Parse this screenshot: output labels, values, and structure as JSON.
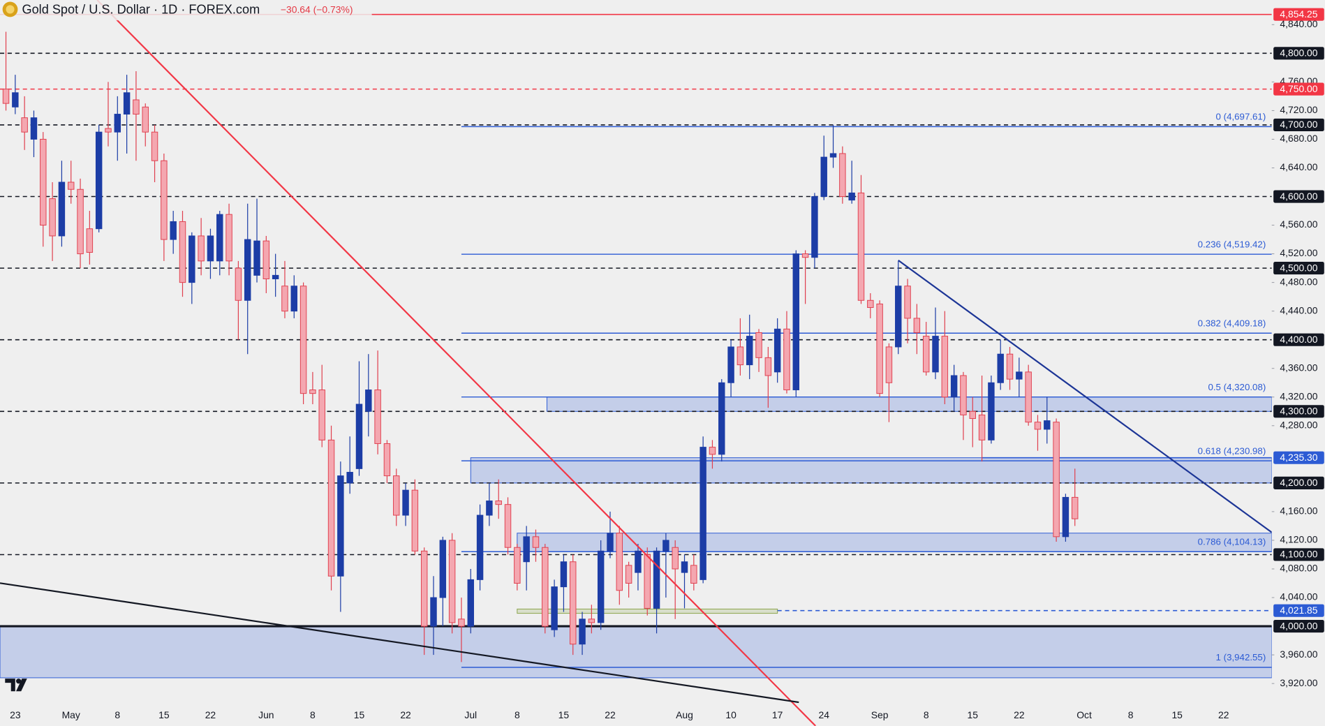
{
  "chart_data": {
    "type": "candlestick",
    "title": "Gold Spot / U.S. Dollar · 1D · FOREX.com",
    "subtitle": "−30.64 (−0.73%)",
    "up_color": "#1c3da6",
    "down_color": "#f4a7b0",
    "down_border": "#e0404f",
    "xlim": [
      -0.64,
      136.18
    ],
    "ylim": [
      3895,
      4874.3
    ],
    "categories": [
      null,
      "23",
      null,
      null,
      null,
      null,
      null,
      "May",
      null,
      null,
      null,
      null,
      "8",
      null,
      null,
      null,
      null,
      "15",
      null,
      null,
      null,
      null,
      "22",
      null,
      null,
      null,
      null,
      null,
      "Jun",
      null,
      null,
      null,
      null,
      "8",
      null,
      null,
      null,
      null,
      "15",
      null,
      null,
      null,
      null,
      "22",
      null,
      null,
      null,
      null,
      null,
      null,
      "Jul",
      null,
      null,
      null,
      null,
      "8",
      null,
      null,
      null,
      null,
      "15",
      null,
      null,
      null,
      null,
      "22",
      null,
      null,
      null,
      null,
      null,
      null,
      null,
      "Aug",
      null,
      null,
      null,
      null,
      "10",
      null,
      null,
      null,
      null,
      "17",
      null,
      null,
      null,
      null,
      "24",
      null,
      null,
      null,
      null,
      null,
      "Sep",
      null,
      null,
      null,
      null,
      "8",
      null,
      null,
      null,
      null,
      "15",
      null,
      null,
      null,
      null,
      "22",
      null,
      null,
      null,
      null,
      null,
      null,
      "Oct",
      null,
      null,
      null,
      null,
      "8",
      null,
      null,
      null,
      null,
      "15",
      null,
      null,
      null,
      null,
      "22"
    ],
    "open": [
      4750,
      4725,
      4710,
      4680,
      4680,
      4597,
      4545,
      4620,
      4610,
      4555,
      4555,
      4695,
      4690,
      4715,
      4735,
      4725,
      4690,
      4650,
      4540,
      4565,
      4480,
      4545,
      4510,
      4510,
      4575,
      4500,
      4455,
      4490,
      4538,
      4485,
      4475,
      4440,
      4475,
      4330,
      4330,
      4260,
      4070,
      4200,
      4220,
      4300,
      4330,
      4255,
      4210,
      4155,
      4190,
      4105,
      4000,
      4040,
      4120,
      4010,
      4000,
      4065,
      4155,
      4175,
      4170,
      4110,
      4090,
      4125,
      4110,
      3995,
      4055,
      4090,
      3975,
      4010,
      4005,
      4105,
      4130,
      4085,
      4075,
      4100,
      4025,
      4105,
      4110,
      4075,
      4085,
      4065,
      4250,
      4240,
      4340,
      4390,
      4365,
      4410,
      4375,
      4355,
      4415,
      4330,
      4520,
      4515,
      4600,
      4655,
      4660,
      4595,
      4605,
      4455,
      4450,
      4390,
      4390,
      4475,
      4430,
      4405,
      4355,
      4405,
      4320,
      4350,
      4300,
      4295,
      4260,
      4340,
      4380,
      4345,
      4355,
      4285,
      4275,
      4285,
      4125,
      4180,
      null,
      null,
      null,
      null,
      null,
      null,
      null,
      null,
      null,
      null,
      null,
      null,
      null,
      null,
      null,
      null
    ],
    "high": [
      4830,
      4770,
      4740,
      4720,
      4690,
      4620,
      4650,
      4650,
      4625,
      4580,
      4700,
      4760,
      4740,
      4770,
      4775,
      4730,
      4700,
      4660,
      4580,
      4580,
      4550,
      4570,
      4555,
      4580,
      4590,
      4510,
      4590,
      4597,
      4545,
      4520,
      4510,
      4490,
      4480,
      4355,
      4365,
      4280,
      4230,
      4265,
      4370,
      4380,
      4385,
      4260,
      4220,
      4200,
      4205,
      4110,
      4070,
      4125,
      4130,
      4040,
      4080,
      4170,
      4200,
      4205,
      4180,
      4115,
      4140,
      4135,
      4115,
      4065,
      4100,
      4100,
      4020,
      4030,
      4120,
      4160,
      4140,
      4090,
      4115,
      4110,
      4110,
      4130,
      4120,
      4100,
      4100,
      4265,
      4260,
      4345,
      4400,
      4430,
      4435,
      4415,
      4390,
      4430,
      4440,
      4525,
      4525,
      4605,
      4685,
      4700,
      4670,
      4650,
      4630,
      4465,
      4455,
      4395,
      4510,
      4485,
      4450,
      4425,
      4445,
      4440,
      4365,
      4355,
      4320,
      4350,
      4350,
      4400,
      4390,
      4375,
      4365,
      4295,
      4320,
      4290,
      4185,
      4220,
      null,
      null,
      null,
      null,
      null,
      null,
      null,
      null,
      null,
      null,
      null,
      null,
      null,
      null,
      null,
      null
    ],
    "low": [
      4720,
      4715,
      4665,
      4655,
      4530,
      4510,
      4530,
      4590,
      4500,
      4505,
      4550,
      4670,
      4650,
      4660,
      4650,
      4670,
      4620,
      4510,
      4520,
      4460,
      4450,
      4490,
      4485,
      4490,
      4490,
      4400,
      4380,
      4480,
      4465,
      4460,
      4430,
      4430,
      4310,
      4310,
      4250,
      4050,
      4020,
      4185,
      4210,
      4265,
      4240,
      4200,
      4140,
      4140,
      4100,
      3960,
      3960,
      4000,
      3990,
      3950,
      3990,
      4050,
      4140,
      4150,
      4100,
      4050,
      4050,
      4090,
      3990,
      3985,
      4020,
      3960,
      3960,
      3990,
      3995,
      4095,
      4030,
      4040,
      4050,
      4015,
      3990,
      4040,
      4010,
      4025,
      4050,
      4060,
      4220,
      4230,
      4320,
      4350,
      4345,
      4355,
      4305,
      4340,
      4325,
      4320,
      4450,
      4500,
      4595,
      4640,
      4590,
      4590,
      4450,
      4430,
      4320,
      4285,
      4380,
      4395,
      4380,
      4350,
      4345,
      4310,
      4300,
      4260,
      4250,
      4230,
      4255,
      4330,
      4330,
      4320,
      4280,
      4245,
      4255,
      4118,
      4118,
      4140,
      null,
      null,
      null,
      null,
      null,
      null,
      null,
      null,
      null,
      null,
      null,
      null,
      null,
      null,
      null,
      null
    ],
    "close": [
      4730,
      4745,
      4690,
      4710,
      4560,
      4545,
      4620,
      4610,
      4520,
      4522,
      4690,
      4690,
      4715,
      4745,
      4715,
      4690,
      4650,
      4540,
      4565,
      4480,
      4545,
      4510,
      4545,
      4575,
      4510,
      4455,
      4540,
      4538,
      4485,
      4490,
      4440,
      4475,
      4325,
      4325,
      4260,
      4070,
      4210,
      4215,
      4310,
      4330,
      4255,
      4210,
      4155,
      4190,
      4105,
      4000,
      4040,
      4120,
      4005,
      4000,
      4065,
      4155,
      4175,
      4170,
      4110,
      4060,
      4125,
      4110,
      4000,
      4055,
      4090,
      3975,
      4010,
      4005,
      4105,
      4130,
      4050,
      4060,
      4105,
      4025,
      4105,
      4120,
      4080,
      4090,
      4060,
      4250,
      4240,
      4340,
      4390,
      4365,
      4405,
      4375,
      4350,
      4415,
      4330,
      4520,
      4515,
      4600,
      4655,
      4660,
      4600,
      4605,
      4455,
      4445,
      4325,
      4340,
      4475,
      4430,
      4410,
      4355,
      4405,
      4320,
      4350,
      4295,
      4290,
      4260,
      4340,
      4380,
      4345,
      4355,
      4285,
      4275,
      4287,
      4125,
      4180,
      4150,
      null,
      null,
      null,
      null,
      null,
      null,
      null,
      null,
      null,
      null,
      null,
      null,
      null,
      null,
      null,
      null
    ],
    "yticks": [
      {
        "value": 3920,
        "label": "3,920.00"
      },
      {
        "value": 3960,
        "label": "3,960.00"
      },
      {
        "value": 4040,
        "label": "4,040.00"
      },
      {
        "value": 4080,
        "label": "4,080.00"
      },
      {
        "value": 4120,
        "label": "4,120.00"
      },
      {
        "value": 4160,
        "label": "4,160.00"
      },
      {
        "value": 4280,
        "label": "4,280.00"
      },
      {
        "value": 4320,
        "label": "4,320.00"
      },
      {
        "value": 4360,
        "label": "4,360.00"
      },
      {
        "value": 4440,
        "label": "4,440.00"
      },
      {
        "value": 4480,
        "label": "4,480.00"
      },
      {
        "value": 4520,
        "label": "4,520.00"
      },
      {
        "value": 4560,
        "label": "4,560.00"
      },
      {
        "value": 4640,
        "label": "4,640.00"
      },
      {
        "value": 4680,
        "label": "4,680.00"
      },
      {
        "value": 4720,
        "label": "4,720.00"
      },
      {
        "value": 4760,
        "label": "4,760.00"
      },
      {
        "value": 4840,
        "label": "4,840.00"
      }
    ],
    "levels": [
      {
        "value": 4854.25,
        "label": "4,854.25",
        "color": "#f23645",
        "style": "solid"
      },
      {
        "value": 4800,
        "label": "4,800.00",
        "color": "#131722",
        "style": "dashed"
      },
      {
        "value": 4750,
        "label": "4,750.00",
        "color": "#f23645",
        "style": "dashed"
      },
      {
        "value": 4700,
        "label": "4,700.00",
        "color": "#131722",
        "style": "dashed"
      },
      {
        "value": 4600,
        "label": "4,600.00",
        "color": "#131722",
        "style": "dashed"
      },
      {
        "value": 4500,
        "label": "4,500.00",
        "color": "#131722",
        "style": "dashed"
      },
      {
        "value": 4400,
        "label": "4,400.00",
        "color": "#131722",
        "style": "dashed"
      },
      {
        "value": 4300,
        "label": "4,300.00",
        "color": "#131722",
        "style": "dashed"
      },
      {
        "value": 4235.3,
        "label": "4,235.30",
        "color": "#2c5bd4",
        "style": "solid",
        "start": 105
      },
      {
        "value": 4200,
        "label": "4,200.00",
        "color": "#131722",
        "style": "dashed"
      },
      {
        "value": 4100,
        "label": "4,100.00",
        "color": "#131722",
        "style": "dashed"
      },
      {
        "value": 4021.85,
        "label": "4,021.85",
        "color": "#2c5bd4",
        "style": "dashed",
        "start": 83
      },
      {
        "value": 4000,
        "label": "4,000.00",
        "color": "#131722",
        "style": "bold"
      }
    ],
    "fib_levels": [
      {
        "value": 4697.61,
        "label": "0 (4,697.61)"
      },
      {
        "value": 4519.42,
        "label": "0.236 (4,519.42)"
      },
      {
        "value": 4409.18,
        "label": "0.382 (4,409.18)"
      },
      {
        "value": 4320.08,
        "label": "0.5 (4,320.08)"
      },
      {
        "value": 4230.98,
        "label": "0.618 (4,230.98)"
      },
      {
        "value": 4104.13,
        "label": "0.786 (4,104.13)"
      },
      {
        "value": 3942.55,
        "label": "1 (3,942.55)"
      }
    ],
    "fib_start": 49,
    "fib_color": "#2c5bd4",
    "zones": [
      {
        "low": 3928,
        "high": 4000,
        "start": -0.64,
        "color": "#2c5bd4"
      },
      {
        "low": 4200,
        "high": 4235.3,
        "start": 50,
        "color": "#2c5bd4"
      },
      {
        "low": 4300,
        "high": 4320.08,
        "start": 58.2,
        "color": "#2c5bd4"
      },
      {
        "low": 4104.13,
        "high": 4130,
        "start": 55,
        "color": "#2c5bd4"
      },
      {
        "low": 4018,
        "high": 4024,
        "start": 55,
        "end": 83,
        "color": "#8aa34a"
      }
    ],
    "trendlines": [
      {
        "color": "#f23645",
        "points": [
          [
            9.82,
            4874.3
          ],
          [
            87.1,
            3860.8
          ]
        ]
      },
      {
        "color": "#131722",
        "points": [
          [
            -0.64,
            4060.2
          ],
          [
            85.3,
            3893.8
          ]
        ]
      },
      {
        "color": "#1c3596",
        "points": [
          [
            96,
            4510.9
          ],
          [
            136.18,
            4131
          ]
        ]
      }
    ]
  }
}
